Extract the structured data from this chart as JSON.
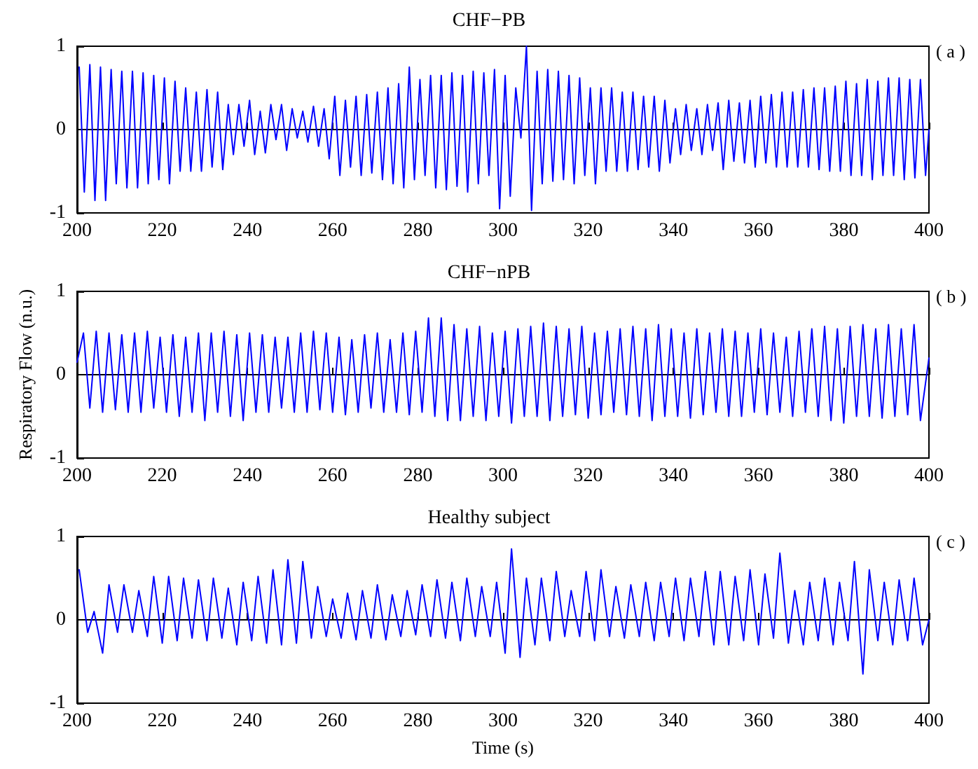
{
  "chart_data": [
    {
      "type": "line",
      "title": "CHF−PB",
      "annotations": [
        "( a )"
      ],
      "xlim": [
        200,
        400
      ],
      "xticks": [
        200,
        220,
        240,
        260,
        280,
        300,
        320,
        340,
        360,
        380,
        400
      ],
      "ylim": [
        -1,
        1
      ],
      "yticks": [
        -1,
        0,
        1
      ],
      "series": [
        {
          "color": "#0000ff",
          "x": [
            200.5,
            201.7,
            203,
            204.2,
            205.5,
            206.7,
            208,
            209.2,
            210.5,
            211.7,
            213,
            214.2,
            215.5,
            216.7,
            218,
            219.2,
            220.5,
            221.7,
            223,
            224.2,
            225.5,
            226.7,
            228,
            229.2,
            230.5,
            231.7,
            233,
            234.2,
            235.5,
            236.7,
            238,
            239.2,
            240.5,
            241.7,
            243,
            244.2,
            245.5,
            246.7,
            248,
            249.2,
            250.5,
            251.7,
            253,
            254.2,
            255.5,
            256.7,
            258,
            259.2,
            260.5,
            261.7,
            263,
            264.2,
            265.5,
            266.7,
            268,
            269.2,
            270.5,
            271.7,
            273,
            274.2,
            275.5,
            276.7,
            278,
            279.2,
            280.5,
            281.7,
            283,
            284.2,
            285.5,
            286.7,
            288,
            289.2,
            290.5,
            291.7,
            293,
            294.2,
            295.5,
            296.7,
            298,
            299.2,
            300.5,
            301.7,
            303,
            304.2,
            305.5,
            306.7,
            308,
            309.2,
            310.5,
            311.7,
            313,
            314.2,
            315.5,
            316.7,
            318,
            319.2,
            320.5,
            321.7,
            323,
            324.2,
            325.5,
            326.7,
            328,
            329.2,
            330.5,
            331.7,
            333,
            334.2,
            335.5,
            336.7,
            338,
            339.2,
            340.5,
            341.7,
            343,
            344.2,
            345.5,
            346.7,
            348,
            349.2,
            350.5,
            351.7,
            353,
            354.2,
            355.5,
            356.7,
            358,
            359.2,
            360.5,
            361.7,
            363,
            364.2,
            365.5,
            366.7,
            368,
            369.2,
            370.5,
            371.7,
            373,
            374.2,
            375.5,
            376.7,
            378,
            379.2,
            380.5,
            381.7,
            383,
            384.2,
            385.5,
            386.7,
            388,
            389.2,
            390.5,
            391.7,
            393,
            394.2,
            395.5,
            396.7,
            398,
            399.2,
            400
          ],
          "values": [
            0.75,
            -0.75,
            0.78,
            -0.85,
            0.75,
            -0.85,
            0.72,
            -0.65,
            0.7,
            -0.7,
            0.7,
            -0.7,
            0.68,
            -0.65,
            0.65,
            -0.6,
            0.62,
            -0.65,
            0.58,
            -0.5,
            0.5,
            -0.5,
            0.45,
            -0.5,
            0.48,
            -0.45,
            0.45,
            -0.48,
            0.3,
            -0.3,
            0.3,
            -0.2,
            0.35,
            -0.3,
            0.22,
            -0.28,
            0.3,
            -0.12,
            0.3,
            -0.25,
            0.25,
            -0.1,
            0.22,
            -0.15,
            0.28,
            -0.2,
            0.25,
            -0.35,
            0.4,
            -0.55,
            0.35,
            -0.45,
            0.4,
            -0.55,
            0.42,
            -0.52,
            0.45,
            -0.6,
            0.5,
            -0.65,
            0.55,
            -0.7,
            0.75,
            -0.6,
            0.6,
            -0.55,
            0.65,
            -0.7,
            0.65,
            -0.72,
            0.68,
            -0.68,
            0.65,
            -0.75,
            0.7,
            -0.65,
            0.68,
            -0.55,
            0.72,
            -0.95,
            0.65,
            -0.8,
            0.5,
            -0.1,
            1.0,
            -0.97,
            0.7,
            -0.65,
            0.72,
            -0.62,
            0.7,
            -0.6,
            0.65,
            -0.65,
            0.62,
            -0.55,
            0.5,
            -0.65,
            0.5,
            -0.5,
            0.5,
            -0.5,
            0.45,
            -0.5,
            0.45,
            -0.48,
            0.4,
            -0.45,
            0.4,
            -0.5,
            0.35,
            -0.4,
            0.25,
            -0.3,
            0.3,
            -0.25,
            0.25,
            -0.3,
            0.3,
            -0.25,
            0.32,
            -0.48,
            0.35,
            -0.38,
            0.32,
            -0.4,
            0.35,
            -0.45,
            0.4,
            -0.4,
            0.42,
            -0.45,
            0.45,
            -0.45,
            0.45,
            -0.45,
            0.48,
            -0.45,
            0.5,
            -0.48,
            0.5,
            -0.5,
            0.52,
            -0.5,
            0.58,
            -0.55,
            0.55,
            -0.55,
            0.6,
            -0.6,
            0.58,
            -0.55,
            0.62,
            -0.55,
            0.62,
            -0.6,
            0.6,
            -0.58,
            0.6,
            -0.55,
            0
          ]
        }
      ]
    },
    {
      "type": "line",
      "title": "CHF−nPB",
      "ylabel": "Respiratory Flow (n.u.)",
      "annotations": [
        "( b )"
      ],
      "xlim": [
        200,
        400
      ],
      "xticks": [
        200,
        220,
        240,
        260,
        280,
        300,
        320,
        340,
        360,
        380,
        400
      ],
      "ylim": [
        -1,
        1
      ],
      "yticks": [
        -1,
        0,
        1
      ],
      "series": [
        {
          "color": "#0000ff",
          "x": [
            200,
            201.5,
            203,
            204.5,
            206,
            207.5,
            209,
            210.5,
            212,
            213.5,
            215,
            216.5,
            218,
            219.5,
            221,
            222.5,
            224,
            225.5,
            227,
            228.5,
            230,
            231.5,
            233,
            234.5,
            236,
            237.5,
            239,
            240.5,
            242,
            243.5,
            245,
            246.5,
            248,
            249.5,
            251,
            252.5,
            254,
            255.5,
            257,
            258.5,
            260,
            261.5,
            263,
            264.5,
            266,
            267.5,
            269,
            270.5,
            272,
            273.5,
            275,
            276.5,
            278,
            279.5,
            281,
            282.5,
            284,
            285.5,
            287,
            288.5,
            290,
            291.5,
            293,
            294.5,
            296,
            297.5,
            299,
            300.5,
            302,
            303.5,
            305,
            306.5,
            308,
            309.5,
            311,
            312.5,
            314,
            315.5,
            317,
            318.5,
            320,
            321.5,
            323,
            324.5,
            326,
            327.5,
            329,
            330.5,
            332,
            333.5,
            335,
            336.5,
            338,
            339.5,
            341,
            342.5,
            344,
            345.5,
            347,
            348.5,
            350,
            351.5,
            353,
            354.5,
            356,
            357.5,
            359,
            360.5,
            362,
            363.5,
            365,
            366.5,
            368,
            369.5,
            371,
            372.5,
            374,
            375.5,
            377,
            378.5,
            380,
            381.5,
            383,
            384.5,
            386,
            387.5,
            389,
            390.5,
            392,
            393.5,
            395,
            396.5,
            398,
            400
          ],
          "values": [
            0.15,
            0.5,
            -0.4,
            0.52,
            -0.45,
            0.5,
            -0.42,
            0.48,
            -0.45,
            0.5,
            -0.45,
            0.52,
            -0.4,
            0.45,
            -0.45,
            0.48,
            -0.5,
            0.45,
            -0.45,
            0.5,
            -0.55,
            0.5,
            -0.45,
            0.52,
            -0.5,
            0.48,
            -0.55,
            0.5,
            -0.45,
            0.48,
            -0.45,
            0.45,
            -0.4,
            0.45,
            -0.45,
            0.5,
            -0.45,
            0.52,
            -0.42,
            0.5,
            -0.45,
            0.45,
            -0.48,
            0.42,
            -0.45,
            0.48,
            -0.4,
            0.5,
            -0.45,
            0.42,
            -0.45,
            0.5,
            -0.48,
            0.52,
            -0.45,
            0.68,
            -0.5,
            0.68,
            -0.55,
            0.6,
            -0.55,
            0.55,
            -0.5,
            0.58,
            -0.55,
            0.5,
            -0.5,
            0.52,
            -0.58,
            0.55,
            -0.5,
            0.58,
            -0.5,
            0.62,
            -0.55,
            0.58,
            -0.5,
            0.55,
            -0.48,
            0.58,
            -0.52,
            0.5,
            -0.48,
            0.52,
            -0.45,
            0.55,
            -0.48,
            0.58,
            -0.5,
            0.55,
            -0.55,
            0.6,
            -0.5,
            0.55,
            -0.5,
            0.5,
            -0.52,
            0.55,
            -0.48,
            0.5,
            -0.45,
            0.55,
            -0.5,
            0.52,
            -0.5,
            0.5,
            -0.45,
            0.55,
            -0.48,
            0.5,
            -0.45,
            0.45,
            -0.5,
            0.52,
            -0.45,
            0.55,
            -0.5,
            0.58,
            -0.55,
            0.55,
            -0.58,
            0.58,
            -0.5,
            0.6,
            -0.5,
            0.55,
            -0.52,
            0.6,
            -0.5,
            0.55,
            -0.48,
            0.6,
            -0.55,
            0.2
          ]
        }
      ]
    },
    {
      "type": "line",
      "title": "Healthy subject",
      "xlabel": "Time (s)",
      "annotations": [
        "( c )"
      ],
      "xlim": [
        200,
        400
      ],
      "xticks": [
        200,
        220,
        240,
        260,
        280,
        300,
        320,
        340,
        360,
        380,
        400
      ],
      "ylim": [
        -1,
        1
      ],
      "yticks": [
        -1,
        0,
        1
      ],
      "series": [
        {
          "color": "#0000ff",
          "x": [
            200.5,
            202.5,
            204,
            206,
            207.5,
            209.5,
            211,
            213,
            214.5,
            216.5,
            218,
            220,
            221.5,
            223.5,
            225,
            227,
            228.5,
            230.5,
            232,
            234,
            235.5,
            237.5,
            239,
            241,
            242.5,
            244.5,
            246,
            248,
            249.5,
            251.5,
            253,
            255,
            256.5,
            258.5,
            260,
            262,
            263.5,
            265.5,
            267,
            269,
            270.5,
            272.5,
            274,
            276,
            277.5,
            279.5,
            281,
            283,
            284.5,
            286.5,
            288,
            290,
            291.5,
            293.5,
            295,
            297,
            298.5,
            300.5,
            302,
            304,
            305.5,
            307.5,
            309,
            311,
            312.5,
            314.5,
            316,
            318,
            319.5,
            321.5,
            323,
            325,
            326.5,
            328.5,
            330,
            332,
            333.5,
            335.5,
            337,
            339,
            340.5,
            342.5,
            344,
            346,
            347.5,
            349.5,
            351,
            353,
            354.5,
            356.5,
            358,
            360,
            361.5,
            363.5,
            365,
            367,
            368.5,
            370.5,
            372,
            374,
            375.5,
            377.5,
            379,
            381,
            382.5,
            384.5,
            386,
            388,
            389.5,
            391.5,
            393,
            395,
            396.5,
            398.5,
            400
          ],
          "values": [
            0.6,
            -0.15,
            0.1,
            -0.4,
            0.42,
            -0.15,
            0.42,
            -0.15,
            0.35,
            -0.2,
            0.52,
            -0.28,
            0.52,
            -0.25,
            0.5,
            -0.22,
            0.48,
            -0.25,
            0.5,
            -0.22,
            0.38,
            -0.3,
            0.45,
            -0.25,
            0.52,
            -0.28,
            0.6,
            -0.3,
            0.72,
            -0.28,
            0.7,
            -0.22,
            0.4,
            -0.2,
            0.25,
            -0.22,
            0.32,
            -0.24,
            0.35,
            -0.22,
            0.42,
            -0.24,
            0.3,
            -0.2,
            0.35,
            -0.18,
            0.42,
            -0.2,
            0.48,
            -0.22,
            0.45,
            -0.25,
            0.5,
            -0.2,
            0.4,
            -0.2,
            0.45,
            -0.4,
            0.85,
            -0.45,
            0.5,
            -0.3,
            0.5,
            -0.25,
            0.58,
            -0.2,
            0.35,
            -0.2,
            0.58,
            -0.25,
            0.6,
            -0.2,
            0.4,
            -0.22,
            0.42,
            -0.2,
            0.45,
            -0.25,
            0.45,
            -0.2,
            0.5,
            -0.25,
            0.5,
            -0.2,
            0.58,
            -0.3,
            0.58,
            -0.3,
            0.52,
            -0.25,
            0.6,
            -0.3,
            0.55,
            -0.22,
            0.8,
            -0.28,
            0.35,
            -0.3,
            0.45,
            -0.25,
            0.5,
            -0.3,
            0.45,
            -0.25,
            0.7,
            -0.65,
            0.6,
            -0.25,
            0.45,
            -0.3,
            0.48,
            -0.25,
            0.5,
            -0.3,
            0
          ]
        }
      ]
    }
  ]
}
